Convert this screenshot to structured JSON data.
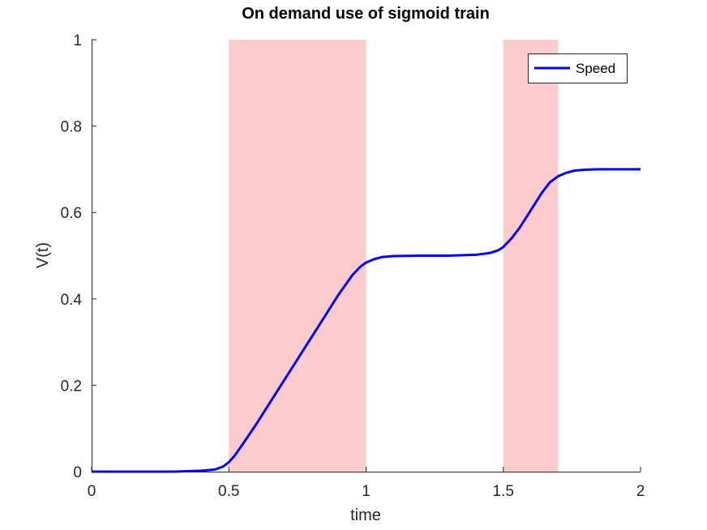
{
  "chart_data": {
    "type": "line",
    "title": "On demand use of sigmoid train",
    "xlabel": "time",
    "ylabel": "V(t)",
    "xlim": [
      0,
      2
    ],
    "ylim": [
      0,
      1
    ],
    "xticks": [
      "0",
      "0.5",
      "1",
      "1.5",
      "2"
    ],
    "yticks": [
      "0",
      "0.2",
      "0.4",
      "0.6",
      "0.8",
      "1"
    ],
    "grid": false,
    "legend_position": "top-right",
    "shaded_regions": [
      {
        "x": [
          0.5,
          1.0
        ],
        "color": "#fccccc"
      },
      {
        "x": [
          1.5,
          1.7
        ],
        "color": "#fccccc"
      }
    ],
    "series": [
      {
        "name": "Speed",
        "color": "#0000ee",
        "x": [
          0,
          0.1,
          0.2,
          0.3,
          0.4,
          0.45,
          0.48,
          0.5,
          0.52,
          0.55,
          0.6,
          0.65,
          0.7,
          0.75,
          0.8,
          0.85,
          0.9,
          0.95,
          0.98,
          1.0,
          1.03,
          1.06,
          1.1,
          1.2,
          1.3,
          1.4,
          1.45,
          1.48,
          1.5,
          1.53,
          1.56,
          1.6,
          1.64,
          1.67,
          1.7,
          1.73,
          1.76,
          1.8,
          1.85,
          1.9,
          2.0
        ],
        "y": [
          0,
          0,
          0,
          0,
          0.002,
          0.005,
          0.012,
          0.022,
          0.036,
          0.063,
          0.11,
          0.16,
          0.21,
          0.26,
          0.31,
          0.36,
          0.41,
          0.455,
          0.475,
          0.484,
          0.492,
          0.497,
          0.499,
          0.5,
          0.5,
          0.502,
          0.506,
          0.512,
          0.52,
          0.54,
          0.565,
          0.605,
          0.645,
          0.67,
          0.684,
          0.692,
          0.697,
          0.699,
          0.7,
          0.7,
          0.7
        ]
      }
    ]
  }
}
